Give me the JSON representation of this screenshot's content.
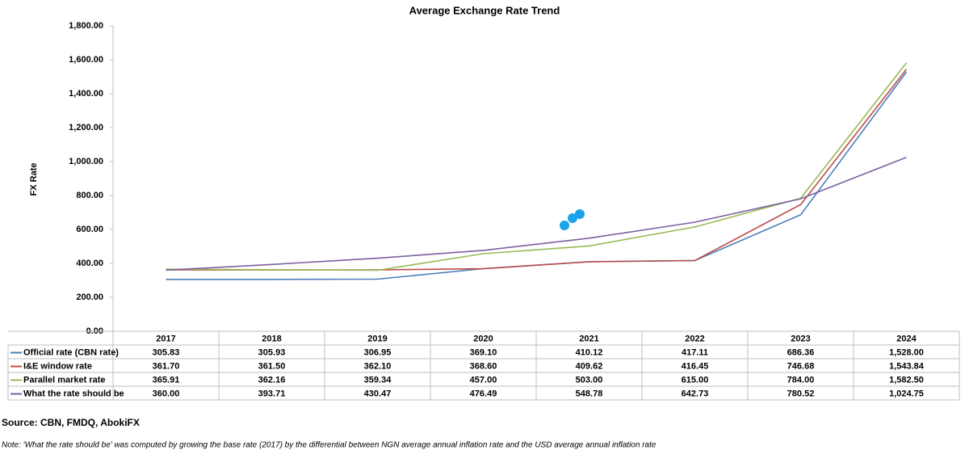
{
  "chart_data": {
    "type": "line",
    "title": "Average Exchange Rate Trend",
    "y_label": "FX Rate",
    "categories": [
      "2017",
      "2018",
      "2019",
      "2020",
      "2021",
      "2022",
      "2023",
      "2024"
    ],
    "series": [
      {
        "name": "Official rate (CBN rate)",
        "color": "#4a7ebb",
        "values": [
          305.83,
          305.93,
          306.95,
          369.1,
          410.12,
          417.11,
          686.36,
          1528.0
        ],
        "value_labels": [
          "305.83",
          "305.93",
          "306.95",
          "369.10",
          "410.12",
          "417.11",
          "686.36",
          "1,528.00"
        ]
      },
      {
        "name": "I&E window rate",
        "color": "#be4b48",
        "values": [
          361.7,
          361.5,
          362.1,
          368.6,
          409.62,
          416.45,
          746.68,
          1543.84
        ],
        "value_labels": [
          "361.70",
          "361.50",
          "362.10",
          "368.60",
          "409.62",
          "416.45",
          "746.68",
          "1,543.84"
        ]
      },
      {
        "name": "Parallel market rate",
        "color": "#98b954",
        "values": [
          365.91,
          362.16,
          359.34,
          457.0,
          503.0,
          615.0,
          784.0,
          1582.5
        ],
        "value_labels": [
          "365.91",
          "362.16",
          "359.34",
          "457.00",
          "503.00",
          "615.00",
          "784.00",
          "1,582.50"
        ]
      },
      {
        "name": "What the rate should be",
        "color": "#7d60a0",
        "values": [
          360.0,
          393.71,
          430.47,
          476.49,
          548.78,
          642.73,
          780.52,
          1024.75
        ],
        "value_labels": [
          "360.00",
          "393.71",
          "430.47",
          "476.49",
          "548.78",
          "642.73",
          "780.52",
          "1,024.75"
        ]
      }
    ],
    "ylim": [
      0,
      1800
    ],
    "yticks": [
      {
        "value": 0,
        "label": "0.00"
      },
      {
        "value": 200,
        "label": "200.00"
      },
      {
        "value": 400,
        "label": "400.00"
      },
      {
        "value": 600,
        "label": "600.00"
      },
      {
        "value": 800,
        "label": "800.00"
      },
      {
        "value": 1000,
        "label": "1,000.00"
      },
      {
        "value": 1200,
        "label": "1,200.00"
      },
      {
        "value": 1400,
        "label": "1,400.00"
      },
      {
        "value": 1600,
        "label": "1,600.00"
      },
      {
        "value": 1800,
        "label": "1,800.00"
      }
    ]
  },
  "source": "Source: CBN, FMDQ, AbokiFX",
  "note": "Note: 'What the rate should be' was computed by growing the base rate (2017) by the differential between NGN average annual inflation rate and the USD average annual inflation rate"
}
